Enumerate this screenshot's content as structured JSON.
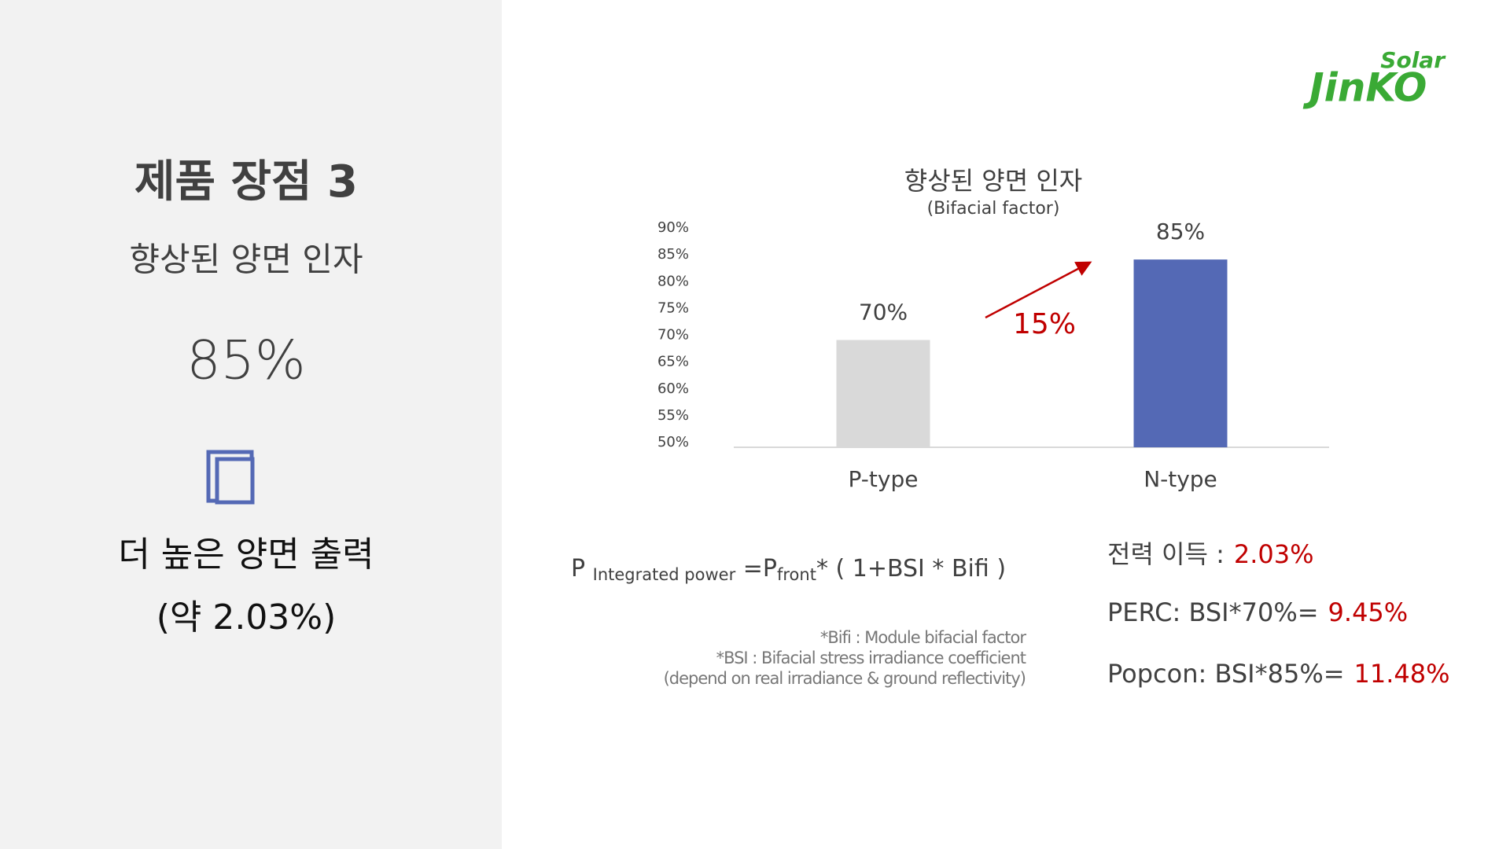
{
  "left_panel": {
    "title": "제품 장점 3",
    "subtitle": "향상된 양면 인자",
    "value": "85%",
    "benefit": "더 높은 양면 출력",
    "benefit_detail": "(약 2.03%)"
  },
  "logo": {
    "brand": "JinKO",
    "tag": "Solar"
  },
  "chart_data": {
    "type": "bar",
    "title": "향상된 양면 인자",
    "subtitle": "(Bifacial factor)",
    "categories": [
      "P-type",
      "N-type"
    ],
    "values": [
      70,
      85
    ],
    "value_labels": [
      "70%",
      "85%"
    ],
    "colors": [
      "#d9d9d9",
      "#5469b5"
    ],
    "ylim": [
      50,
      90
    ],
    "yticks": [
      {
        "value": 50,
        "label": "50%"
      },
      {
        "value": 55,
        "label": "55%"
      },
      {
        "value": 60,
        "label": "60%"
      },
      {
        "value": 65,
        "label": "65%"
      },
      {
        "value": 70,
        "label": "70%"
      },
      {
        "value": 75,
        "label": "75%"
      },
      {
        "value": 80,
        "label": "80%"
      },
      {
        "value": 85,
        "label": "85%"
      },
      {
        "value": 90,
        "label": "90%"
      }
    ],
    "grid": false,
    "annotation": "15%"
  },
  "formula": {
    "p": "P",
    "p_sub": "Integrated power",
    "eq": "=P",
    "front_sub": "front",
    "rest": "* (  1+BSI * Bifi  )"
  },
  "notes": [
    "*Bifi : Module bifacial factor",
    "*BSI : Bifacial stress irradiance coefficient",
    "(depend on real irradiance & ground reflectivity)"
  ],
  "results": [
    {
      "label": "전력 이득  :",
      "value": "2.03%"
    },
    {
      "label": "PERC: BSI*70%=",
      "value": "9.45%"
    },
    {
      "label": "Popcon: BSI*85%=",
      "value": "11.48%"
    }
  ]
}
